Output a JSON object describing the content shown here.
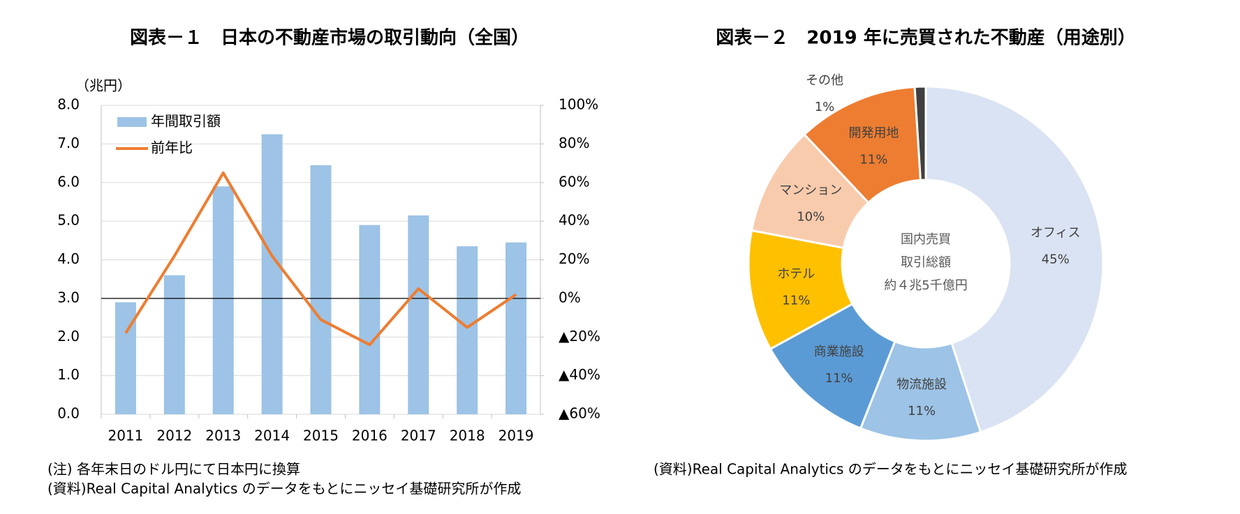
{
  "chart_data": [
    {
      "type": "bar_line",
      "title": "図表－１　日本の不動産市場の取引動向（全国）",
      "y_label": "（兆円）",
      "categories": [
        "2011",
        "2012",
        "2013",
        "2014",
        "2015",
        "2016",
        "2017",
        "2018",
        "2019"
      ],
      "series": [
        {
          "name": "年間取引額",
          "color": "#9dc3e6",
          "values": [
            2.9,
            3.6,
            5.9,
            7.25,
            6.45,
            4.9,
            5.15,
            4.35,
            4.45
          ]
        },
        {
          "name": "前年比",
          "color": "#ed7d31",
          "axis": "y2",
          "values": [
            -18,
            22,
            65,
            22,
            -11,
            -24,
            5,
            -15,
            2
          ]
        }
      ],
      "ylim": [
        0,
        8
      ],
      "yticks": [
        {
          "value": 0,
          "label": "0.0"
        },
        {
          "value": 1,
          "label": "1.0"
        },
        {
          "value": 2,
          "label": "2.0"
        },
        {
          "value": 3,
          "label": "3.0"
        },
        {
          "value": 4,
          "label": "4.0"
        },
        {
          "value": 5,
          "label": "5.0"
        },
        {
          "value": 6,
          "label": "6.0"
        },
        {
          "value": 7,
          "label": "7.0"
        },
        {
          "value": 8,
          "label": "8.0"
        }
      ],
      "y2lim": [
        -60,
        100
      ],
      "y2ticks": [
        {
          "value": -60,
          "label": "▲60%"
        },
        {
          "value": -40,
          "label": "▲40%"
        },
        {
          "value": -20,
          "label": "▲20%"
        },
        {
          "value": 0,
          "label": "0%"
        },
        {
          "value": 20,
          "label": "20%"
        },
        {
          "value": 40,
          "label": "40%"
        },
        {
          "value": 60,
          "label": "60%"
        },
        {
          "value": 80,
          "label": "80%"
        },
        {
          "value": 100,
          "label": "100%"
        }
      ],
      "grid": true,
      "legend": "top-left",
      "notes": [
        "(注)  各年末日のドル円にて日本円に換算",
        "(資料)Real Capital Analytics のデータをもとにニッセイ基礎研究所が作成"
      ]
    },
    {
      "type": "donut",
      "title": "図表－２　2019 年に売買された不動産（用途別）",
      "categories": [
        "オフィス",
        "物流施設",
        "商業施設",
        "ホテル",
        "マンション",
        "開発用地",
        "その他"
      ],
      "values": [
        45,
        11,
        11,
        11,
        10,
        11,
        1
      ],
      "value_labels": [
        "45%",
        "11%",
        "11%",
        "11%",
        "10%",
        "11%",
        "1%"
      ],
      "colors": [
        "#dae3f3",
        "#9dc3e6",
        "#5b9bd5",
        "#ffc000",
        "#f8cbad",
        "#ed7d31",
        "#404040"
      ],
      "center_label": [
        "国内売買",
        "取引総額",
        "約４兆5千億円"
      ],
      "notes": [
        "(資料)Real Capital Analytics のデータをもとにニッセイ基礎研究所が作成"
      ]
    }
  ]
}
